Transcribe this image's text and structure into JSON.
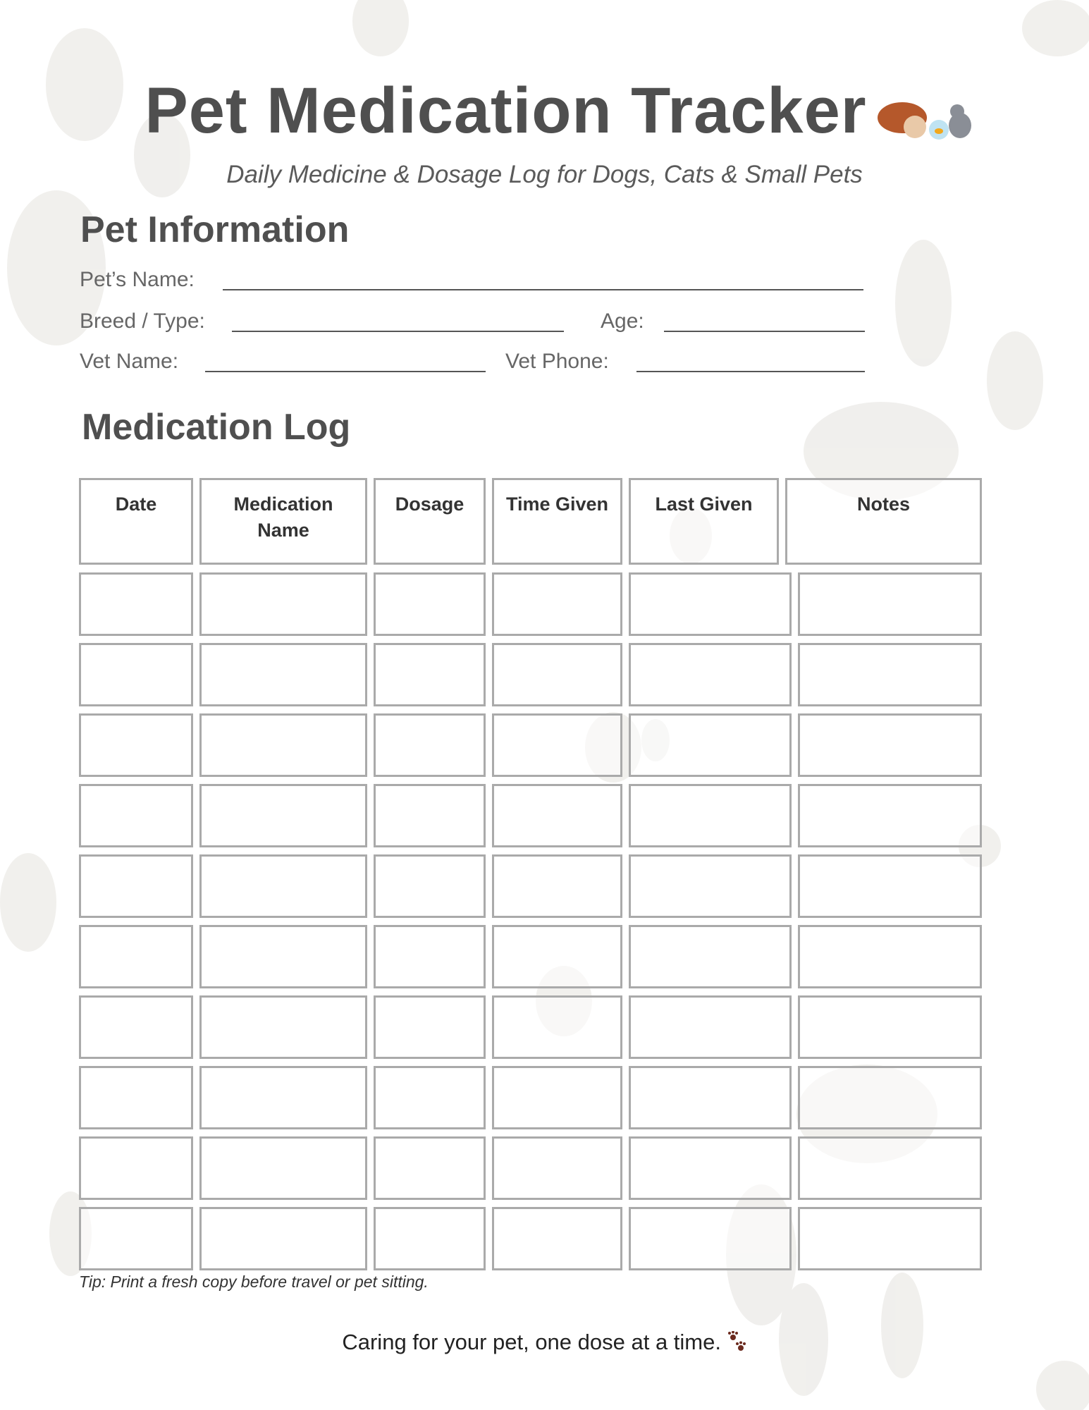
{
  "header": {
    "title": "Pet Medication Tracker",
    "title_icon": "dog-fishbowl-cat-illustration",
    "subtitle": "Daily Medicine & Dosage Log for Dogs, Cats & Small Pets"
  },
  "pet_info": {
    "heading": "Pet Information",
    "pet_name_label": "Pet’s Name:",
    "breed_label": "Breed / Type:",
    "age_label": "Age:",
    "vet_name_label": "Vet Name:",
    "vet_phone_label": "Vet Phone:"
  },
  "log": {
    "heading": "Medication Log",
    "columns": [
      "Date",
      "Medication\nName",
      "Dosage",
      "Time Given",
      "Last Given",
      "Notes"
    ],
    "row_count": 10,
    "border_color": "#aaaaaa"
  },
  "tip": "Tip: Print a fresh copy before travel or pet sitting.",
  "footer": {
    "text": "Caring for your pet, one dose at a time.",
    "icon": "paw-prints-icon",
    "icon_color": "#6b2a1e"
  }
}
